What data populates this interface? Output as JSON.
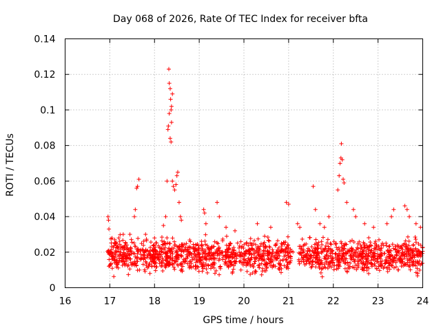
{
  "chart_data": {
    "type": "scatter",
    "title": "Day 068 of 2026, Rate Of TEC Index for receiver bfta",
    "xlabel": "GPS time / hours",
    "ylabel": "ROTI / TECUs",
    "xlim": [
      16,
      24
    ],
    "ylim": [
      0,
      0.14
    ],
    "x_ticks": [
      16,
      17,
      18,
      19,
      20,
      21,
      22,
      23,
      24
    ],
    "x_tick_labels": [
      "16",
      "17",
      "18",
      "19",
      "20",
      "21",
      "22",
      "23",
      "24"
    ],
    "y_ticks": [
      0,
      0.02,
      0.04,
      0.06,
      0.08,
      0.1,
      0.12,
      0.14
    ],
    "y_tick_labels": [
      "0",
      "0.02",
      "0.04",
      "0.06",
      "0.08",
      "0.1",
      "0.12",
      "0.14"
    ],
    "grid": true,
    "marker": "+",
    "color": "#ff0000",
    "series": [
      {
        "name": "ROTI",
        "baseline_band": {
          "x_range": [
            16.95,
            24.0
          ],
          "y_range": [
            0.005,
            0.03
          ]
        },
        "points": [
          [
            16.96,
            0.04
          ],
          [
            16.97,
            0.038
          ],
          [
            16.98,
            0.033
          ],
          [
            17.2,
            0.028
          ],
          [
            17.3,
            0.03
          ],
          [
            17.45,
            0.03
          ],
          [
            17.55,
            0.04
          ],
          [
            17.57,
            0.044
          ],
          [
            17.6,
            0.056
          ],
          [
            17.62,
            0.057
          ],
          [
            17.65,
            0.061
          ],
          [
            17.8,
            0.03
          ],
          [
            18.0,
            0.028
          ],
          [
            18.2,
            0.035
          ],
          [
            18.25,
            0.04
          ],
          [
            18.28,
            0.06
          ],
          [
            18.3,
            0.089
          ],
          [
            18.31,
            0.091
          ],
          [
            18.33,
            0.098
          ],
          [
            18.32,
            0.123
          ],
          [
            18.33,
            0.115
          ],
          [
            18.35,
            0.112
          ],
          [
            18.36,
            0.106
          ],
          [
            18.37,
            0.1
          ],
          [
            18.38,
            0.102
          ],
          [
            18.4,
            0.109
          ],
          [
            18.38,
            0.093
          ],
          [
            18.35,
            0.084
          ],
          [
            18.37,
            0.082
          ],
          [
            18.4,
            0.06
          ],
          [
            18.42,
            0.057
          ],
          [
            18.45,
            0.055
          ],
          [
            18.48,
            0.058
          ],
          [
            18.5,
            0.063
          ],
          [
            18.52,
            0.065
          ],
          [
            18.55,
            0.048
          ],
          [
            18.58,
            0.04
          ],
          [
            18.6,
            0.038
          ],
          [
            19.1,
            0.044
          ],
          [
            19.12,
            0.042
          ],
          [
            19.15,
            0.036
          ],
          [
            19.4,
            0.048
          ],
          [
            19.45,
            0.04
          ],
          [
            19.6,
            0.034
          ],
          [
            19.8,
            0.032
          ],
          [
            20.3,
            0.036
          ],
          [
            20.6,
            0.034
          ],
          [
            20.95,
            0.048
          ],
          [
            21.0,
            0.047
          ],
          [
            21.2,
            0.036
          ],
          [
            21.25,
            0.034
          ],
          [
            21.55,
            0.057
          ],
          [
            21.6,
            0.044
          ],
          [
            21.7,
            0.036
          ],
          [
            21.8,
            0.034
          ],
          [
            21.9,
            0.04
          ],
          [
            22.1,
            0.055
          ],
          [
            22.13,
            0.063
          ],
          [
            22.15,
            0.07
          ],
          [
            22.17,
            0.073
          ],
          [
            22.18,
            0.081
          ],
          [
            22.2,
            0.072
          ],
          [
            22.22,
            0.061
          ],
          [
            22.24,
            0.059
          ],
          [
            22.3,
            0.048
          ],
          [
            22.45,
            0.044
          ],
          [
            22.5,
            0.04
          ],
          [
            22.7,
            0.036
          ],
          [
            22.9,
            0.034
          ],
          [
            23.2,
            0.036
          ],
          [
            23.3,
            0.04
          ],
          [
            23.35,
            0.044
          ],
          [
            23.6,
            0.046
          ],
          [
            23.65,
            0.044
          ],
          [
            23.7,
            0.04
          ],
          [
            23.85,
            0.036
          ],
          [
            23.95,
            0.034
          ]
        ]
      }
    ]
  }
}
